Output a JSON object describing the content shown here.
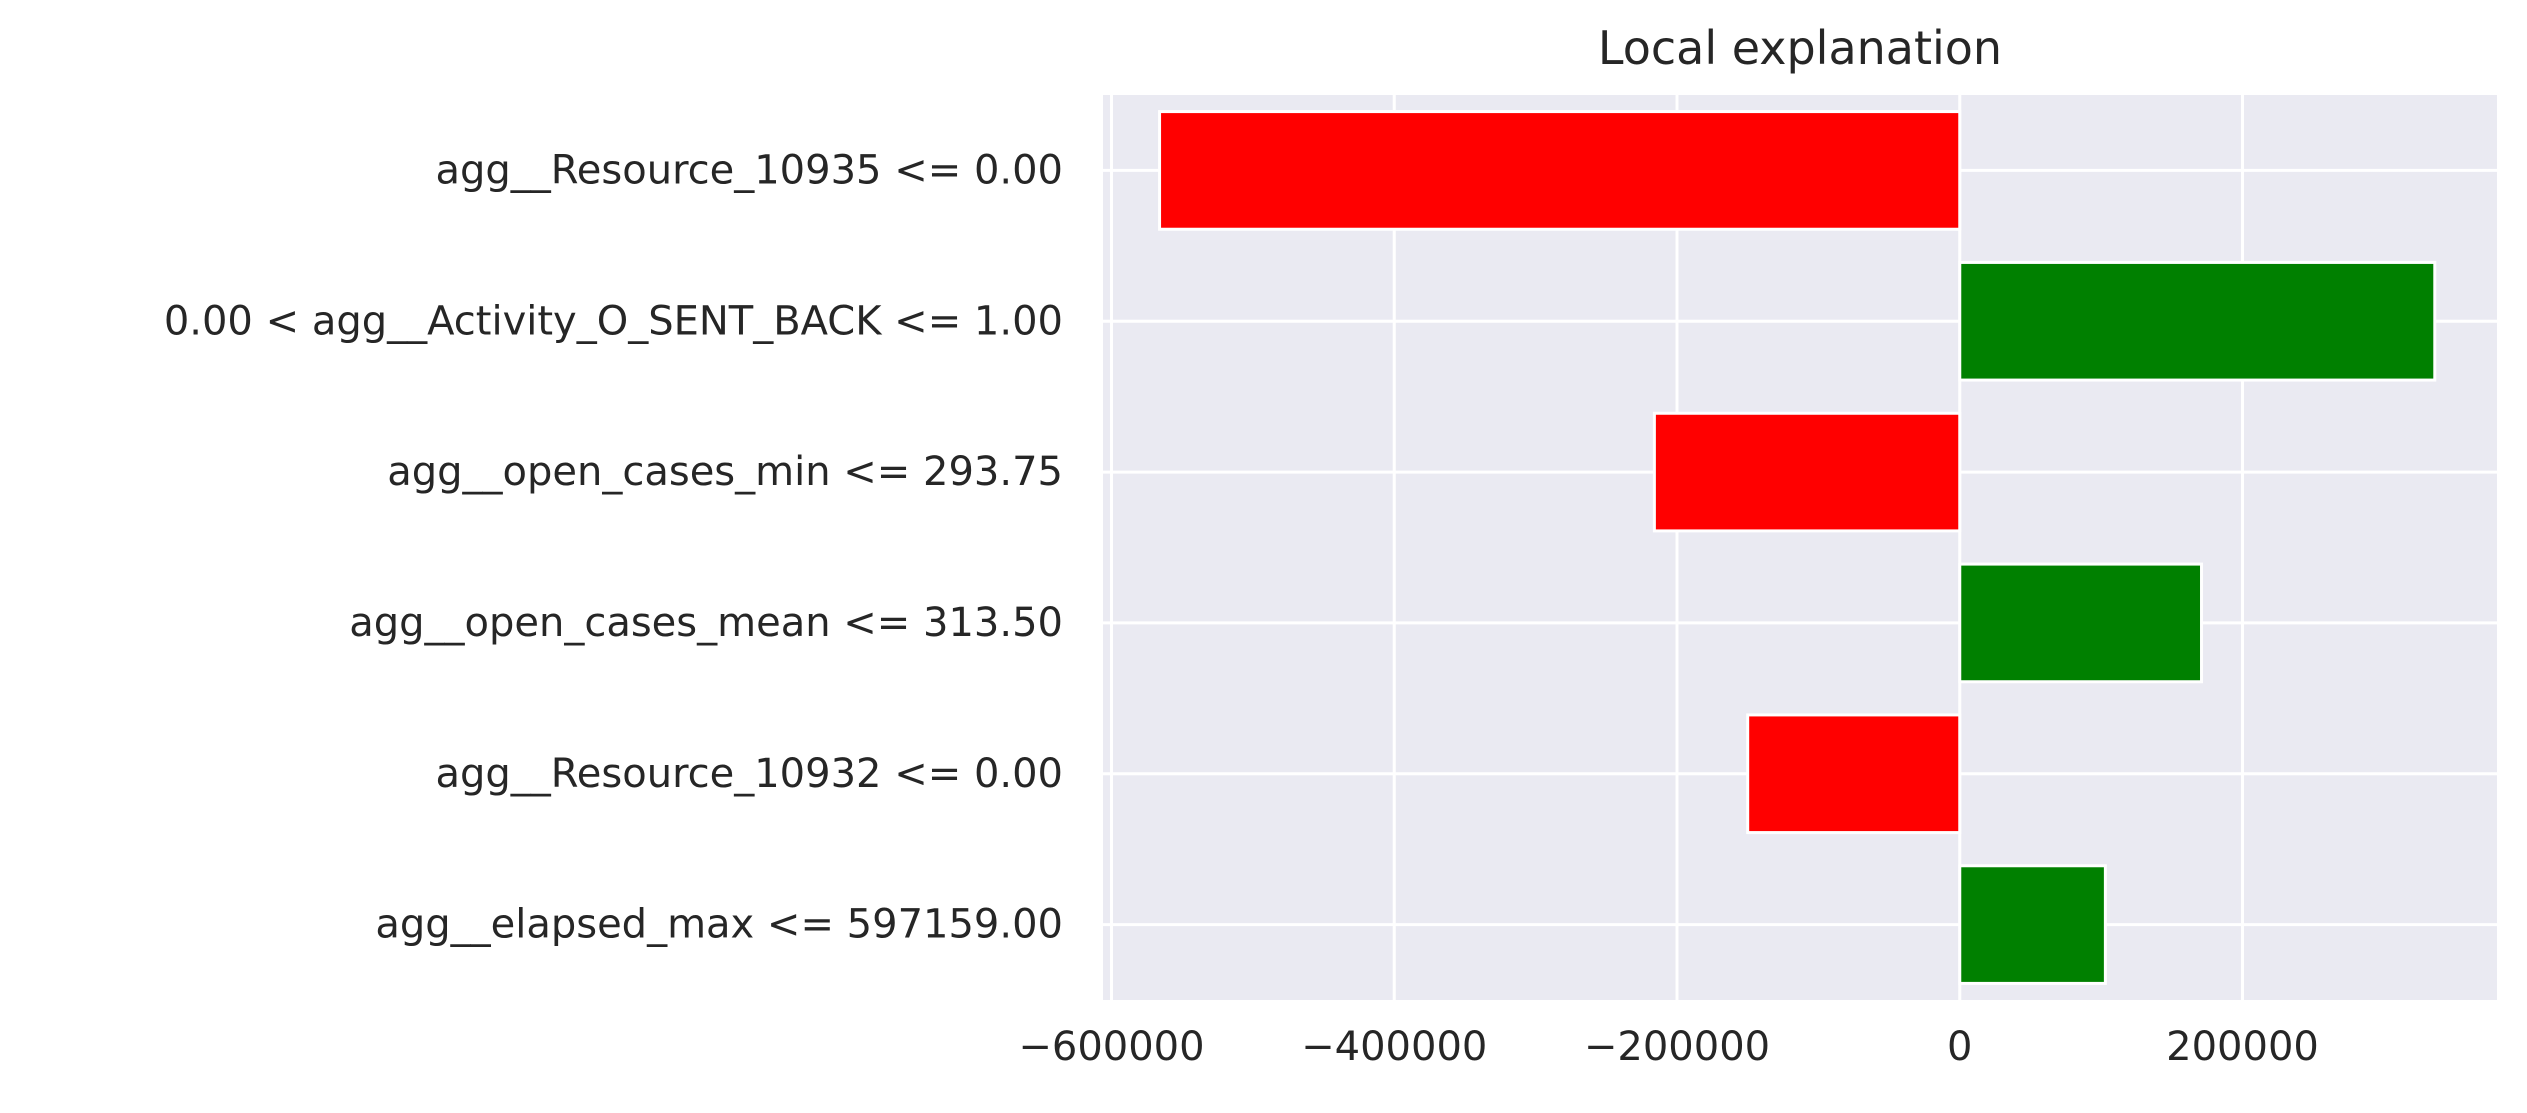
{
  "chart_data": {
    "type": "bar",
    "orientation": "horizontal",
    "title": "Local explanation",
    "xlabel": "",
    "ylabel": "",
    "categories": [
      "agg__Resource_10935 <= 0.00",
      "0.00 < agg__Activity_O_SENT_BACK <= 1.00",
      "agg__open_cases_min <= 293.75",
      "agg__open_cases_mean <= 313.50",
      "agg__Resource_10932 <= 0.00",
      "agg__elapsed_max <= 597159.00"
    ],
    "values": [
      -566000,
      336000,
      -216000,
      171000,
      -150000,
      103000
    ],
    "xlim": [
      -606000,
      380000
    ],
    "xticks": [
      -600000,
      -400000,
      -200000,
      0,
      200000
    ],
    "xtick_labels": [
      "−600000",
      "−400000",
      "−200000",
      "0",
      "200000"
    ],
    "grid": true,
    "colors": {
      "positive": "#008000",
      "negative": "#ff0000",
      "background": "#eaeaf2",
      "grid": "#ffffff",
      "text": "#262626"
    }
  }
}
